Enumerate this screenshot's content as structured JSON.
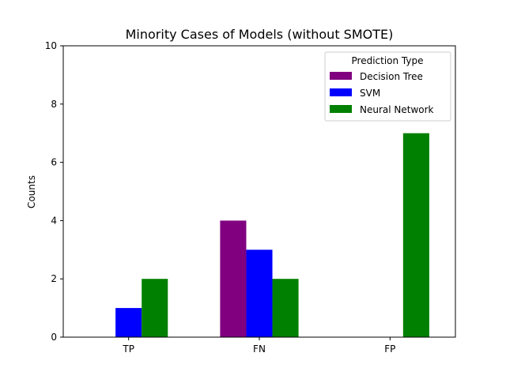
{
  "chart_data": {
    "type": "bar",
    "title": "Minority Cases of Models (without SMOTE)",
    "xlabel": "",
    "ylabel": "Counts",
    "categories": [
      "TP",
      "FN",
      "FP"
    ],
    "ylim": [
      0,
      10
    ],
    "yticks": [
      0,
      2,
      4,
      6,
      8,
      10
    ],
    "grid": false,
    "legend": {
      "title": "Prediction Type",
      "position": "top-right"
    },
    "series": [
      {
        "name": "Decision Tree",
        "values": [
          0,
          4,
          0
        ],
        "color": "#800080"
      },
      {
        "name": "SVM",
        "values": [
          1,
          3,
          0
        ],
        "color": "#0000ff"
      },
      {
        "name": "Neural Network",
        "values": [
          2,
          2,
          7
        ],
        "color": "#008000"
      }
    ]
  }
}
